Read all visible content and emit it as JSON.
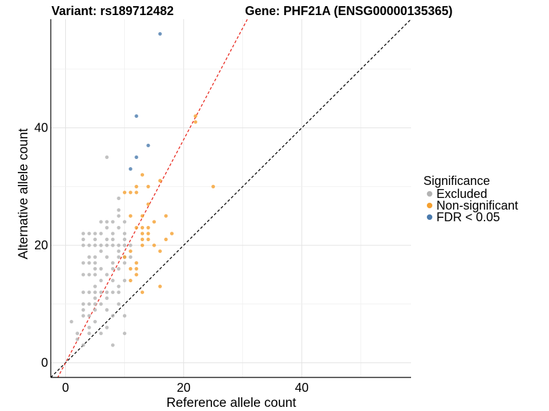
{
  "chart_data": {
    "type": "scatter",
    "title_left": "Variant: rs189712482",
    "title_right": "Gene: PHF21A (ENSG00000135365)",
    "xlabel": "Reference allele count",
    "ylabel": "Alternative allele count",
    "xlim": [
      -2.5,
      58.5
    ],
    "ylim": [
      -2.5,
      58.5
    ],
    "x_ticks": [
      0,
      20,
      40
    ],
    "y_ticks": [
      0,
      20,
      40
    ],
    "x_minor_ticks": [
      10,
      30,
      50
    ],
    "y_minor_ticks": [
      10,
      30,
      50
    ],
    "grid": true,
    "legend": {
      "title": "Significance",
      "position": "right",
      "entries": [
        {
          "label": "Excluded",
          "color": "#b3b3b3"
        },
        {
          "label": "Non-significant",
          "color": "#f5a030"
        },
        {
          "label": "FDR < 0.05",
          "color": "#4a7aad"
        }
      ]
    },
    "reference_lines": [
      {
        "kind": "identity",
        "intercept": 0,
        "slope": 1,
        "color": "#000000",
        "dash": true
      },
      {
        "kind": "fit",
        "intercept": 0,
        "slope": 1.9,
        "color": "#e8251b",
        "dash": true
      }
    ],
    "series": [
      {
        "name": "Excluded",
        "color": "#b3b3b3",
        "points": [
          [
            1,
            7
          ],
          [
            2,
            4
          ],
          [
            2,
            5
          ],
          [
            3,
            3
          ],
          [
            3,
            8
          ],
          [
            3,
            9
          ],
          [
            3,
            10
          ],
          [
            3,
            12
          ],
          [
            3,
            15
          ],
          [
            3,
            17
          ],
          [
            3,
            20
          ],
          [
            3,
            21
          ],
          [
            3,
            22
          ],
          [
            4,
            5
          ],
          [
            4,
            6
          ],
          [
            4,
            8
          ],
          [
            4,
            10
          ],
          [
            4,
            12
          ],
          [
            4,
            15
          ],
          [
            4,
            17
          ],
          [
            4,
            18
          ],
          [
            4,
            20
          ],
          [
            4,
            22
          ],
          [
            5,
            9
          ],
          [
            5,
            10
          ],
          [
            5,
            12
          ],
          [
            5,
            13
          ],
          [
            5,
            15
          ],
          [
            5,
            17
          ],
          [
            5,
            18
          ],
          [
            5,
            20
          ],
          [
            5,
            21
          ],
          [
            5,
            22
          ],
          [
            5,
            7
          ],
          [
            5,
            11
          ],
          [
            5,
            16
          ],
          [
            6,
            5
          ],
          [
            6,
            10
          ],
          [
            6,
            12
          ],
          [
            6,
            14
          ],
          [
            6,
            16
          ],
          [
            6,
            19
          ],
          [
            6,
            20
          ],
          [
            6,
            22
          ],
          [
            6,
            24
          ],
          [
            7,
            6
          ],
          [
            7,
            9
          ],
          [
            7,
            11
          ],
          [
            7,
            12
          ],
          [
            7,
            15
          ],
          [
            7,
            18
          ],
          [
            7,
            20
          ],
          [
            7,
            21
          ],
          [
            7,
            23
          ],
          [
            7,
            24
          ],
          [
            7,
            35
          ],
          [
            8,
            3
          ],
          [
            8,
            8
          ],
          [
            8,
            12
          ],
          [
            8,
            14
          ],
          [
            8,
            16
          ],
          [
            8,
            17
          ],
          [
            8,
            20
          ],
          [
            8,
            21
          ],
          [
            8,
            22
          ],
          [
            8,
            24
          ],
          [
            9,
            10
          ],
          [
            9,
            12
          ],
          [
            9,
            13
          ],
          [
            9,
            16
          ],
          [
            9,
            18
          ],
          [
            9,
            19
          ],
          [
            9,
            20
          ],
          [
            9,
            23
          ],
          [
            9,
            25
          ],
          [
            9,
            26
          ],
          [
            9,
            28
          ],
          [
            10,
            5
          ],
          [
            10,
            8
          ],
          [
            10,
            14
          ],
          [
            10,
            17
          ],
          [
            10,
            18
          ],
          [
            10,
            20
          ],
          [
            10,
            21
          ],
          [
            10,
            22
          ],
          [
            10,
            24
          ],
          [
            11,
            18
          ],
          [
            11,
            20
          ]
        ]
      },
      {
        "name": "Non-significant",
        "color": "#f5a030",
        "points": [
          [
            10,
            18
          ],
          [
            10,
            29
          ],
          [
            11,
            14
          ],
          [
            11,
            16
          ],
          [
            11,
            19
          ],
          [
            11,
            25
          ],
          [
            11,
            29
          ],
          [
            12,
            15
          ],
          [
            12,
            16
          ],
          [
            12,
            17
          ],
          [
            12,
            23
          ],
          [
            12,
            29
          ],
          [
            12,
            30
          ],
          [
            13,
            12
          ],
          [
            13,
            20
          ],
          [
            13,
            21
          ],
          [
            13,
            22
          ],
          [
            13,
            23
          ],
          [
            13,
            25
          ],
          [
            13,
            32
          ],
          [
            14,
            21
          ],
          [
            14,
            22
          ],
          [
            14,
            23
          ],
          [
            14,
            27
          ],
          [
            14,
            30
          ],
          [
            15,
            20
          ],
          [
            15,
            24
          ],
          [
            16,
            13
          ],
          [
            16,
            19
          ],
          [
            16,
            31
          ],
          [
            17,
            21
          ],
          [
            17,
            25
          ],
          [
            18,
            22
          ],
          [
            22,
            41
          ],
          [
            22,
            42
          ],
          [
            25,
            30
          ]
        ]
      },
      {
        "name": "FDR < 0.05",
        "color": "#4a7aad",
        "points": [
          [
            11,
            33
          ],
          [
            12,
            35
          ],
          [
            12,
            42
          ],
          [
            14,
            37
          ],
          [
            16,
            56
          ]
        ]
      }
    ]
  }
}
